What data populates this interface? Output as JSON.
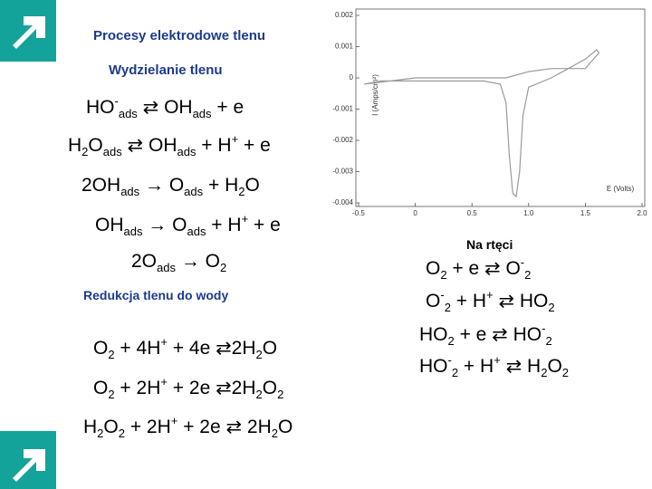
{
  "title": "Procesy elektrodowe tlenu",
  "section_evolution": "Wydzielanie tlenu",
  "left_equations": [
    [
      "HO",
      "-",
      "ads",
      " ⇄ OH",
      "ads",
      " + e"
    ],
    [
      "H",
      "2",
      "O",
      "ads",
      " ⇄ OH",
      "ads",
      " + H",
      "+",
      " + e"
    ],
    [
      "2OH",
      "ads",
      " → O",
      "ads",
      " + H",
      "2",
      "O"
    ],
    [
      "OH",
      "ads",
      " → O",
      "ads",
      " + H",
      "+",
      " + e"
    ],
    [
      "2O",
      "ads",
      " → O",
      "2"
    ]
  ],
  "section_reduction": "Redukcja tlenu do wody",
  "reduction_equations": [
    [
      "O",
      "2",
      " + 4H",
      "+",
      " + 4e ⇄2H",
      "2",
      "O"
    ],
    [
      "O",
      "2",
      " + 2H",
      "+",
      " + 2e ⇄2H",
      "2",
      "O",
      "2"
    ],
    [
      "H",
      "2",
      "O",
      "2",
      " + 2H",
      "+",
      " + 2e ⇄ 2H",
      "2",
      "O"
    ]
  ],
  "section_mercury": "Na rtęci",
  "mercury_equations": [
    [
      "O",
      "2",
      " + e ⇄ O",
      "-",
      "2"
    ],
    [
      "O",
      "-",
      "2",
      " + H",
      "+",
      " ⇄ HO",
      "2"
    ],
    [
      "HO",
      "2",
      " + e ⇄ HO",
      "-",
      "2"
    ],
    [
      "HO",
      "-",
      "2",
      " + H",
      "+",
      " ⇄ H",
      "2",
      "O",
      "2"
    ]
  ],
  "chart_data": {
    "type": "line",
    "color": "#9a9a9a",
    "x_label": "E (Volts)",
    "y_label": "I (Amps/cm²)",
    "x": [
      -0.45,
      -0.3,
      0.0,
      0.3,
      0.6,
      0.75,
      0.8,
      0.83,
      0.86,
      0.89,
      0.92,
      0.95,
      1.0,
      1.2,
      1.35,
      1.5,
      1.6,
      1.62,
      1.5,
      1.2,
      1.0,
      0.8,
      0.4,
      0.0,
      -0.45
    ],
    "values": [
      -0.0002,
      -0.0001,
      -0.0001,
      -0.0001,
      -0.0001,
      -0.0002,
      -0.0008,
      -0.0025,
      -0.0037,
      -0.0038,
      -0.003,
      -0.0012,
      -0.0003,
      0.0,
      0.0003,
      0.0006,
      0.0009,
      0.0008,
      0.0003,
      0.0003,
      0.0002,
      0.0,
      0.0,
      0.0,
      -0.0002
    ],
    "xlim": [
      -0.5,
      2.0
    ],
    "ylim": [
      -0.004,
      0.002
    ],
    "xticks": [
      -0.5,
      0,
      0.5,
      {
        "value": 1,
        "label": "1.0"
      },
      {
        "value": 1.5,
        "label": "1.5"
      },
      {
        "value": 2,
        "label": "2.0"
      }
    ],
    "yticks": [
      0.002,
      0.001,
      0,
      -0.001,
      -0.002,
      -0.003,
      -0.004
    ]
  }
}
